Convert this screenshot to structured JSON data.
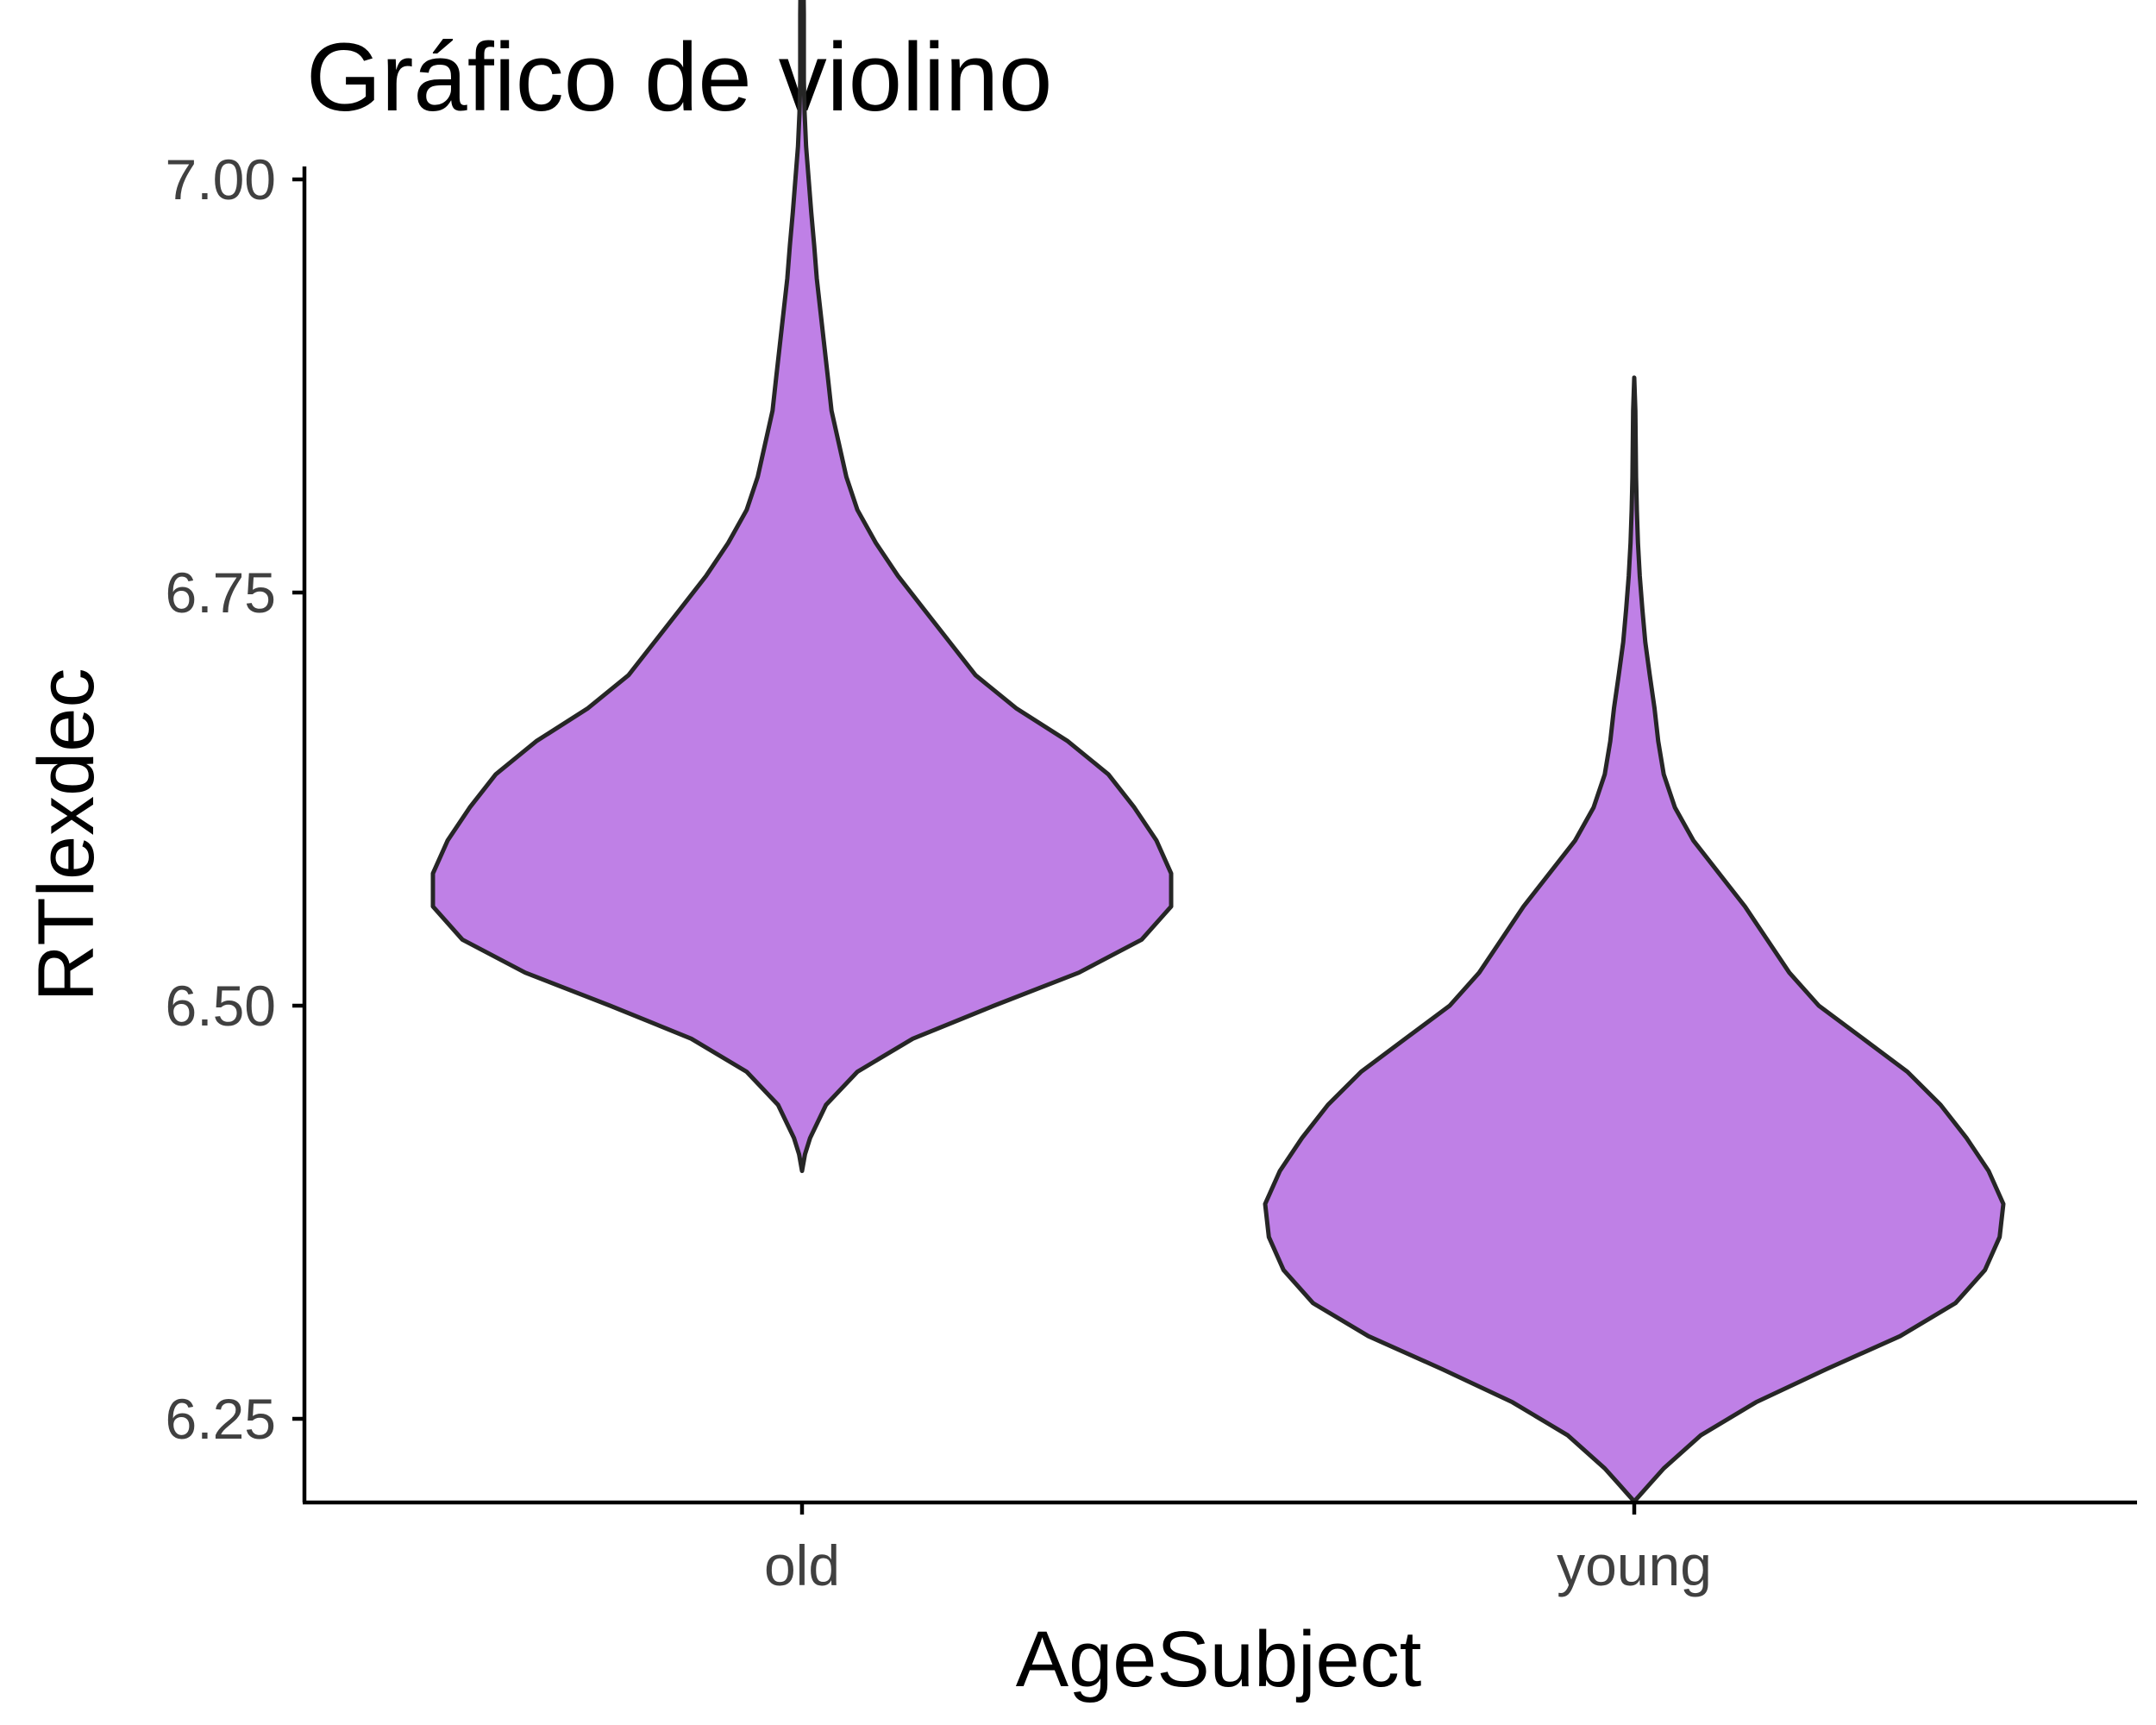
{
  "chart_data": {
    "type": "violin",
    "title": "Gráfico de violino",
    "xlabel": "AgeSubject",
    "ylabel": "RTlexdec",
    "categories": [
      "old",
      "young"
    ],
    "ylim": [
      6.16,
      7.24
    ],
    "yticks": [
      6.25,
      6.5,
      6.75,
      7.0
    ],
    "ytick_labels": [
      "6.25",
      "6.50",
      "6.75",
      "7.00"
    ],
    "grid": false,
    "legend": "none",
    "fill_color": "#bf80e6",
    "outline_color": "#262626",
    "series": [
      {
        "category": "old",
        "min": 6.4,
        "max": 7.19,
        "density_profile": [
          [
            6.4,
            0.0
          ],
          [
            6.41,
            0.008
          ],
          [
            6.42,
            0.022
          ],
          [
            6.44,
            0.065
          ],
          [
            6.46,
            0.15
          ],
          [
            6.48,
            0.3
          ],
          [
            6.5,
            0.52
          ],
          [
            6.52,
            0.75
          ],
          [
            6.54,
            0.92
          ],
          [
            6.56,
            1.0
          ],
          [
            6.58,
            1.0
          ],
          [
            6.6,
            0.96
          ],
          [
            6.62,
            0.9
          ],
          [
            6.64,
            0.83
          ],
          [
            6.66,
            0.72
          ],
          [
            6.68,
            0.58
          ],
          [
            6.7,
            0.47
          ],
          [
            6.72,
            0.4
          ],
          [
            6.74,
            0.33
          ],
          [
            6.76,
            0.26
          ],
          [
            6.78,
            0.2
          ],
          [
            6.8,
            0.15
          ],
          [
            6.82,
            0.12
          ],
          [
            6.84,
            0.1
          ],
          [
            6.86,
            0.08
          ],
          [
            6.88,
            0.07
          ],
          [
            6.9,
            0.06
          ],
          [
            6.92,
            0.05
          ],
          [
            6.94,
            0.04
          ],
          [
            6.96,
            0.033
          ],
          [
            6.98,
            0.025
          ],
          [
            7.0,
            0.018
          ],
          [
            7.02,
            0.011
          ],
          [
            7.04,
            0.007
          ],
          [
            7.06,
            0.005
          ],
          [
            7.08,
            0.005
          ],
          [
            7.1,
            0.005
          ],
          [
            7.12,
            0.004
          ],
          [
            7.14,
            0.004
          ],
          [
            7.16,
            0.003
          ],
          [
            7.18,
            0.002
          ],
          [
            7.19,
            0.0
          ]
        ]
      },
      {
        "category": "young",
        "min": 6.2,
        "max": 6.88,
        "density_profile": [
          [
            6.2,
            0.0
          ],
          [
            6.205,
            0.02
          ],
          [
            6.21,
            0.04
          ],
          [
            6.22,
            0.08
          ],
          [
            6.24,
            0.18
          ],
          [
            6.26,
            0.33
          ],
          [
            6.28,
            0.52
          ],
          [
            6.3,
            0.72
          ],
          [
            6.32,
            0.87
          ],
          [
            6.34,
            0.95
          ],
          [
            6.36,
            0.99
          ],
          [
            6.38,
            1.0
          ],
          [
            6.4,
            0.96
          ],
          [
            6.42,
            0.9
          ],
          [
            6.44,
            0.83
          ],
          [
            6.46,
            0.74
          ],
          [
            6.48,
            0.62
          ],
          [
            6.5,
            0.5
          ],
          [
            6.52,
            0.42
          ],
          [
            6.54,
            0.36
          ],
          [
            6.56,
            0.3
          ],
          [
            6.58,
            0.23
          ],
          [
            6.6,
            0.16
          ],
          [
            6.62,
            0.11
          ],
          [
            6.64,
            0.08
          ],
          [
            6.66,
            0.065
          ],
          [
            6.68,
            0.055
          ],
          [
            6.7,
            0.042
          ],
          [
            6.72,
            0.03
          ],
          [
            6.74,
            0.022
          ],
          [
            6.76,
            0.015
          ],
          [
            6.78,
            0.01
          ],
          [
            6.8,
            0.007
          ],
          [
            6.82,
            0.005
          ],
          [
            6.84,
            0.004
          ],
          [
            6.86,
            0.003
          ],
          [
            6.88,
            0.0
          ]
        ]
      }
    ]
  }
}
